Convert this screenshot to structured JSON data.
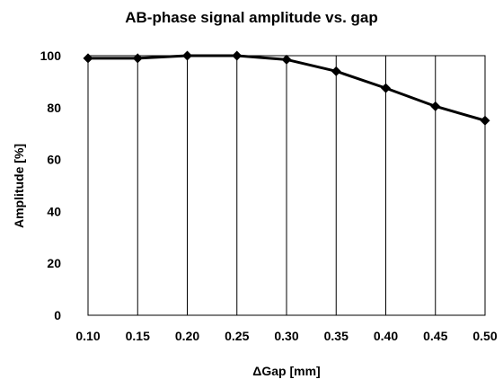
{
  "chart_data": {
    "type": "line",
    "title": "AB-phase signal amplitude vs. gap",
    "xlabel": "ΔGap [mm]",
    "ylabel": "Amplitude [%]",
    "x": [
      "0.10",
      "0.15",
      "0.20",
      "0.25",
      "0.30",
      "0.35",
      "0.40",
      "0.45",
      "0.50"
    ],
    "y_ticks": [
      "0",
      "20",
      "40",
      "60",
      "80",
      "100"
    ],
    "ylim": [
      0,
      100
    ],
    "grid": "vertical",
    "legend": "none",
    "series": [
      {
        "color": "#000000",
        "marker": "diamond",
        "values": [
          99,
          99,
          100,
          100,
          98.5,
          94,
          87.5,
          80.5,
          75
        ]
      }
    ]
  }
}
